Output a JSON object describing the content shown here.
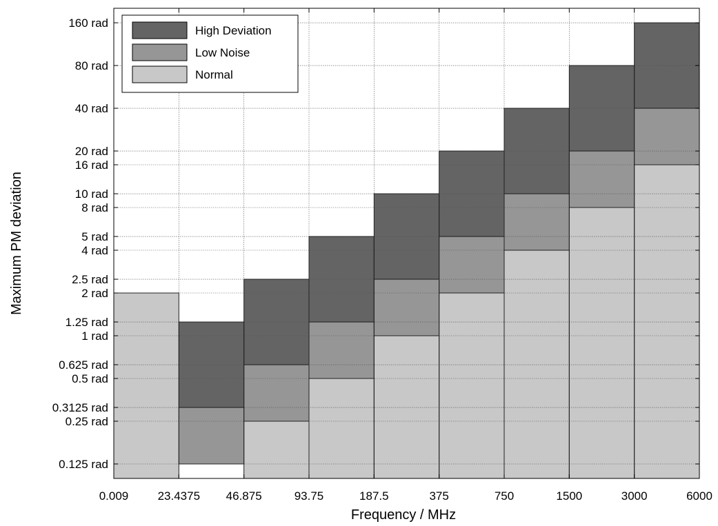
{
  "chart_data": {
    "type": "area",
    "title": "",
    "xlabel": "Frequency / MHz",
    "ylabel": "Maximum PM deviation",
    "y_scale": "log2",
    "x_scale": "categorical (equal-width bands)",
    "grid": true,
    "legend_position": "top-left",
    "x_tick_labels": [
      "0.009",
      "23.4375",
      "46.875",
      "93.75",
      "187.5",
      "375",
      "750",
      "1500",
      "3000",
      "6000"
    ],
    "y_ticks": [
      {
        "value": 0.125,
        "label": "0.125 rad"
      },
      {
        "value": 0.25,
        "label": "0.25 rad"
      },
      {
        "value": 0.3125,
        "label": "0.3125 rad"
      },
      {
        "value": 0.5,
        "label": "0.5 rad"
      },
      {
        "value": 0.625,
        "label": "0.625 rad"
      },
      {
        "value": 1,
        "label": "1 rad"
      },
      {
        "value": 1.25,
        "label": "1.25 rad"
      },
      {
        "value": 2,
        "label": "2 rad"
      },
      {
        "value": 2.5,
        "label": "2.5 rad"
      },
      {
        "value": 4,
        "label": "4 rad"
      },
      {
        "value": 5,
        "label": "5 rad"
      },
      {
        "value": 8,
        "label": "8 rad"
      },
      {
        "value": 10,
        "label": "10 rad"
      },
      {
        "value": 16,
        "label": "16 rad"
      },
      {
        "value": 20,
        "label": "20 rad"
      },
      {
        "value": 40,
        "label": "40 rad"
      },
      {
        "value": 80,
        "label": "80 rad"
      },
      {
        "value": 160,
        "label": "160 rad"
      }
    ],
    "ylim_rad": [
      0.1,
      200
    ],
    "series": [
      {
        "name": "High Deviation",
        "color": "#646464",
        "bands": [
          {
            "x_from": "0.009",
            "x_to": "23.4375",
            "y_from": null,
            "y_to": null
          },
          {
            "x_from": "23.4375",
            "x_to": "46.875",
            "y_from": 0.3125,
            "y_to": 1.25
          },
          {
            "x_from": "46.875",
            "x_to": "93.75",
            "y_from": 0.625,
            "y_to": 2.5
          },
          {
            "x_from": "93.75",
            "x_to": "187.5",
            "y_from": 1.25,
            "y_to": 5
          },
          {
            "x_from": "187.5",
            "x_to": "375",
            "y_from": 2.5,
            "y_to": 10
          },
          {
            "x_from": "375",
            "x_to": "750",
            "y_from": 5,
            "y_to": 20
          },
          {
            "x_from": "750",
            "x_to": "1500",
            "y_from": 10,
            "y_to": 40
          },
          {
            "x_from": "1500",
            "x_to": "3000",
            "y_from": 20,
            "y_to": 80
          },
          {
            "x_from": "3000",
            "x_to": "6000",
            "y_from": 40,
            "y_to": 160
          }
        ]
      },
      {
        "name": "Low  Noise",
        "color": "#969696",
        "bands": [
          {
            "x_from": "0.009",
            "x_to": "23.4375",
            "y_from": null,
            "y_to": null
          },
          {
            "x_from": "23.4375",
            "x_to": "46.875",
            "y_from": 0.125,
            "y_to": 0.3125
          },
          {
            "x_from": "46.875",
            "x_to": "93.75",
            "y_from": 0.25,
            "y_to": 0.625
          },
          {
            "x_from": "93.75",
            "x_to": "187.5",
            "y_from": 0.5,
            "y_to": 1.25
          },
          {
            "x_from": "187.5",
            "x_to": "375",
            "y_from": 1,
            "y_to": 2.5
          },
          {
            "x_from": "375",
            "x_to": "750",
            "y_from": 2,
            "y_to": 5
          },
          {
            "x_from": "750",
            "x_to": "1500",
            "y_from": 4,
            "y_to": 10
          },
          {
            "x_from": "1500",
            "x_to": "3000",
            "y_from": 8,
            "y_to": 20
          },
          {
            "x_from": "3000",
            "x_to": "6000",
            "y_from": 16,
            "y_to": 40
          }
        ]
      },
      {
        "name": "Normal",
        "color": "#c8c8c8",
        "bands": [
          {
            "x_from": "0.009",
            "x_to": "23.4375",
            "y_from": null,
            "y_to": 2
          },
          {
            "x_from": "23.4375",
            "x_to": "46.875",
            "y_from": null,
            "y_to": null
          },
          {
            "x_from": "46.875",
            "x_to": "93.75",
            "y_from": null,
            "y_to": 0.25
          },
          {
            "x_from": "93.75",
            "x_to": "187.5",
            "y_from": null,
            "y_to": 0.5
          },
          {
            "x_from": "187.5",
            "x_to": "375",
            "y_from": null,
            "y_to": 1
          },
          {
            "x_from": "375",
            "x_to": "750",
            "y_from": null,
            "y_to": 2
          },
          {
            "x_from": "750",
            "x_to": "1500",
            "y_from": null,
            "y_to": 4
          },
          {
            "x_from": "1500",
            "x_to": "3000",
            "y_from": null,
            "y_to": 8
          },
          {
            "x_from": "3000",
            "x_to": "6000",
            "y_from": null,
            "y_to": 16
          }
        ]
      }
    ]
  }
}
